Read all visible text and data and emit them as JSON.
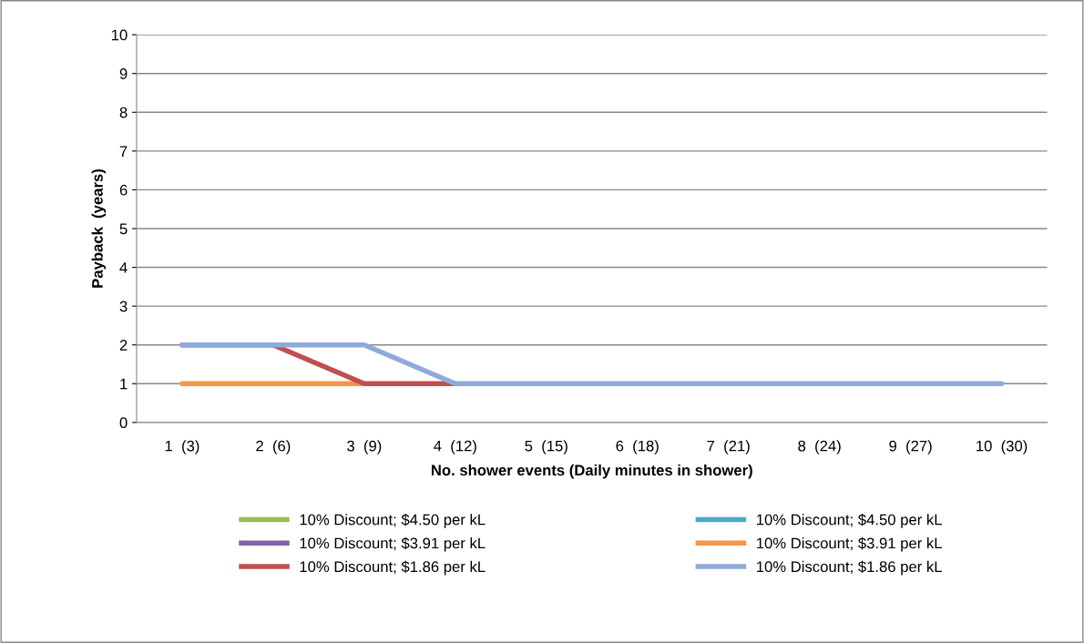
{
  "chart_data": {
    "type": "line",
    "xlabel": "No. shower events (Daily minutes in shower)",
    "ylabel": "Payback  (years)",
    "categories": [
      "1  (3)",
      "2  (6)",
      "3  (9)",
      "4  (12)",
      "5  (15)",
      "6  (18)",
      "7  (21)",
      "8  (24)",
      "9  (27)",
      "10  (30)"
    ],
    "ylim": [
      0,
      10
    ],
    "yticks": [
      0,
      1,
      2,
      3,
      4,
      5,
      6,
      7,
      8,
      9,
      10
    ],
    "grid": "y",
    "legend": "bottom",
    "marker": "none",
    "line_style": "solid",
    "series": [
      {
        "name": "10% Discount; $4.50 per kL",
        "color": "#9bbb59",
        "values": [
          null,
          null,
          null,
          null,
          null,
          null,
          null,
          null,
          null,
          null
        ]
      },
      {
        "name": "10% Discount; $4.50 per kL",
        "color": "#4bacc6",
        "values": [
          null,
          null,
          null,
          null,
          null,
          null,
          null,
          null,
          null,
          null
        ]
      },
      {
        "name": "10% Discount; $3.91 per kL",
        "color": "#8064a2",
        "values": [
          null,
          null,
          null,
          null,
          null,
          null,
          null,
          null,
          null,
          null
        ]
      },
      {
        "name": "10% Discount; $3.91 per kL",
        "color": "#f79646",
        "values": [
          1,
          1,
          1,
          null,
          null,
          null,
          null,
          null,
          null,
          null
        ]
      },
      {
        "name": "10% Discount; $1.86 per kL",
        "color": "#c0504d",
        "values": [
          2,
          2,
          1,
          1,
          null,
          null,
          null,
          null,
          null,
          null
        ]
      },
      {
        "name": "10% Discount; $1.86 per kL",
        "color": "#8eaadb",
        "values": [
          2,
          2,
          2,
          1,
          1,
          1,
          1,
          1,
          1,
          1
        ]
      }
    ]
  }
}
